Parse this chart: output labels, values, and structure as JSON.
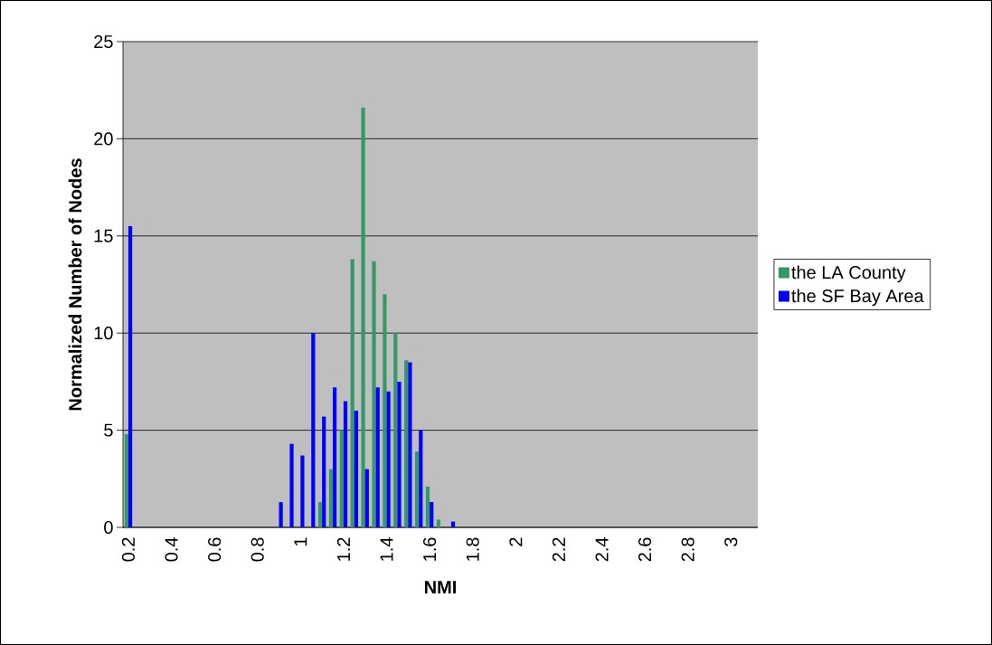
{
  "chart_data": {
    "type": "bar",
    "xlabel": "NMI",
    "ylabel": "Normalized Number of Nodes",
    "categories": [
      "0.2",
      null,
      null,
      null,
      "0.4",
      null,
      null,
      null,
      "0.6",
      null,
      null,
      null,
      "0.8",
      null,
      null,
      null,
      "1",
      null,
      null,
      null,
      "1.2",
      null,
      null,
      null,
      "1.4",
      null,
      null,
      null,
      "1.6",
      null,
      null,
      null,
      "1.8",
      null,
      null,
      null,
      "2",
      null,
      null,
      null,
      "2.2",
      null,
      null,
      null,
      "2.4",
      null,
      null,
      null,
      "2.6",
      null,
      null,
      null,
      "2.8",
      null,
      null,
      null,
      "3",
      null,
      null
    ],
    "series": [
      {
        "name": "the LA County",
        "color": "#339966",
        "values": [
          4.8,
          0,
          0,
          0,
          0,
          0,
          0,
          0,
          0,
          0,
          0,
          0,
          0,
          0,
          0,
          0,
          0,
          0,
          1.3,
          3.0,
          5.0,
          13.8,
          21.6,
          13.7,
          12.0,
          10.0,
          8.6,
          3.9,
          2.1,
          0.4,
          0,
          0,
          0,
          0,
          0,
          0,
          0,
          0,
          0,
          0,
          0,
          0,
          0,
          0,
          0,
          0,
          0,
          0,
          0,
          0,
          0,
          0,
          0,
          0,
          0,
          0,
          0,
          0,
          0
        ]
      },
      {
        "name": "the SF Bay Area",
        "color": "#0000ff",
        "values": [
          15.5,
          0,
          0,
          0,
          0,
          0,
          0,
          0,
          0,
          0,
          0,
          0,
          0,
          0,
          1.3,
          4.3,
          3.7,
          10.0,
          5.7,
          7.2,
          6.5,
          6.0,
          3.0,
          7.2,
          7.0,
          7.5,
          8.5,
          5.0,
          1.3,
          0,
          0.3,
          0,
          0,
          0,
          0,
          0,
          0,
          0,
          0,
          0,
          0,
          0,
          0,
          0,
          0,
          0,
          0,
          0,
          0,
          0,
          0,
          0,
          0,
          0,
          0,
          0,
          0,
          0,
          0
        ]
      }
    ],
    "ylim": [
      0,
      25
    ],
    "yticks": [
      0,
      5,
      10,
      15,
      20,
      25
    ],
    "grid": "y",
    "legend": "right"
  }
}
